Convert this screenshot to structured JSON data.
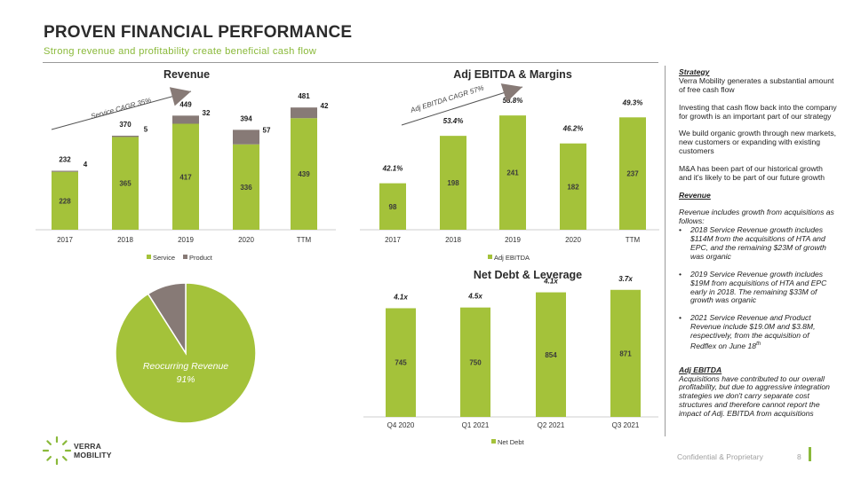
{
  "header": {
    "title": "PROVEN FINANCIAL PERFORMANCE",
    "subtitle": "Strong revenue and profitability create beneficial cash flow"
  },
  "colors": {
    "accent": "#a4c23a",
    "product": "#877a76",
    "text": "#2b2b2b",
    "subtitle": "#8ab93a"
  },
  "chart_data": [
    {
      "type": "bar",
      "title": "Revenue",
      "stacked": true,
      "categories": [
        "2017",
        "2018",
        "2019",
        "2020",
        "TTM"
      ],
      "series": [
        {
          "name": "Service",
          "values": [
            228,
            365,
            417,
            336,
            439
          ]
        },
        {
          "name": "Product",
          "values": [
            4,
            5,
            32,
            57,
            42
          ]
        }
      ],
      "totals": [
        232,
        370,
        449,
        394,
        481
      ],
      "ylim": [
        0,
        520
      ],
      "legend": "bottom",
      "annotation": "Service CAGR 35%"
    },
    {
      "type": "bar",
      "title": "Adj EBITDA & Margins",
      "categories": [
        "2017",
        "2018",
        "2019",
        "2020",
        "TTM"
      ],
      "series": [
        {
          "name": "Adj EBITDA",
          "values": [
            98,
            198,
            241,
            182,
            237
          ]
        }
      ],
      "margins": [
        "42.1%",
        "53.4%",
        "53.8%",
        "46.2%",
        "49.3%"
      ],
      "ylim": [
        0,
        260
      ],
      "legend": "bottom",
      "annotation": "Adj EBITDA CAGR 57%"
    },
    {
      "type": "pie",
      "title": "",
      "slices": [
        {
          "name": "Reocurring Revenue",
          "value": 91
        },
        {
          "name": "",
          "value": 9
        }
      ],
      "label": "Reocurring Revenue",
      "label_value": "91%"
    },
    {
      "type": "bar",
      "title": "Net Debt & Leverage",
      "categories": [
        "Q4 2020",
        "Q1 2021",
        "Q2 2021",
        "Q3 2021"
      ],
      "series": [
        {
          "name": "Net Debt",
          "values": [
            745,
            750,
            854,
            871
          ]
        }
      ],
      "leverage": [
        "4.1x",
        "4.5x",
        "4.1x",
        "3.7x"
      ],
      "ylim": [
        0,
        900
      ],
      "legend": "bottom"
    }
  ],
  "sidebar": {
    "strategy_head": "Strategy",
    "strategy_p1": "Verra Mobility generates a substantial amount of free cash flow",
    "strategy_p2": "Investing that cash flow back into the company for growth is an important part of our strategy",
    "strategy_p3": "We build organic growth through new markets, new customers or expanding with existing customers",
    "strategy_p4": "M&A has been part of our historical growth and it's likely to be part of our future growth",
    "revenue_head": "Revenue",
    "revenue_intro": "Revenue includes growth from acquisitions as follows:",
    "revenue_b1": "2018 Service Revenue growth includes $114M from the acquisitions of HTA and EPC, and the remaining $23M of growth was organic",
    "revenue_b2": "2019 Service Revenue growth includes $19M from acquisitions of HTA and EPC early in 2018. The remaining $33M of growth was organic",
    "revenue_b3": "2021 Service Revenue and Product Revenue include $19.0M and $3.8M, respectively,  from the acquisition of Redflex on June 18",
    "revenue_b3_sup": "th",
    "ebitda_head": "Adj EBITDA",
    "ebitda_p": "Acquisitions have contributed to our overall profitability, but due to aggressive integration strategies we don't carry separate cost structures and therefore cannot report the impact of Adj. EBITDA from acquisitions"
  },
  "footer": {
    "confidential": "Confidential & Proprietary",
    "page": "8",
    "logo_line1": "VERRA",
    "logo_line2": "MOBILITY"
  }
}
